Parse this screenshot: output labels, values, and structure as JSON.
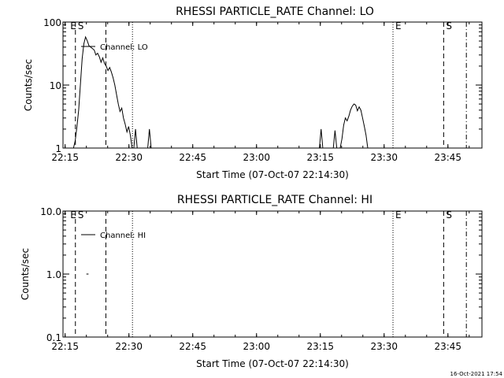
{
  "chart_data": [
    {
      "type": "line",
      "title": "RHESSI PARTICLE_RATE Channel: LO",
      "xlabel": "Start Time (07-Oct-07 22:14:30)",
      "ylabel": "Counts/sec",
      "y_scale": "log",
      "ylim": [
        1,
        100
      ],
      "xlim": [
        "22:14:30",
        "23:53:00"
      ],
      "x_tick_labels": [
        "22:15",
        "22:30",
        "22:45",
        "23:00",
        "23:15",
        "23:30",
        "23:45"
      ],
      "y_tick_labels": [
        "1",
        "10",
        "100"
      ],
      "legend": "top-left",
      "grid": false,
      "series": [
        {
          "name": "Channel: LO",
          "segments": [
            [
              [
                "22:16:58",
                1.0
              ],
              [
                "22:17:22",
                1.3
              ],
              [
                "22:17:47",
                2.2
              ],
              [
                "22:18:11",
                4.0
              ],
              [
                "22:18:35",
                10.0
              ],
              [
                "22:19:00",
                26.0
              ],
              [
                "22:19:24",
                45.0
              ],
              [
                "22:19:48",
                58.0
              ],
              [
                "22:20:13",
                50.0
              ],
              [
                "22:20:37",
                42.0
              ],
              [
                "22:21:01",
                40.0
              ],
              [
                "22:21:25",
                38.0
              ],
              [
                "22:21:50",
                36.0
              ],
              [
                "22:22:14",
                30.0
              ],
              [
                "22:22:38",
                32.0
              ],
              [
                "22:23:03",
                28.0
              ],
              [
                "22:23:27",
                23.0
              ],
              [
                "22:23:51",
                27.0
              ],
              [
                "22:24:16",
                22.0
              ],
              [
                "22:24:40",
                20.0
              ],
              [
                "22:25:04",
                17.0
              ],
              [
                "22:25:29",
                19.0
              ],
              [
                "22:25:53",
                16.0
              ],
              [
                "22:26:17",
                13.0
              ],
              [
                "22:26:41",
                10.0
              ],
              [
                "22:27:06",
                7.0
              ],
              [
                "22:27:30",
                5.0
              ],
              [
                "22:27:54",
                3.8
              ],
              [
                "22:28:19",
                4.3
              ],
              [
                "22:28:43",
                3.0
              ],
              [
                "22:29:07",
                2.4
              ],
              [
                "22:29:32",
                1.8
              ],
              [
                "22:29:56",
                2.2
              ],
              [
                "22:30:20",
                1.6
              ],
              [
                "22:30:45",
                1.0
              ]
            ],
            [
              [
                "22:31:09",
                1.0
              ],
              [
                "22:31:33",
                2.0
              ],
              [
                "22:31:57",
                1.0
              ]
            ],
            [
              [
                "22:34:25",
                1.0
              ],
              [
                "22:34:49",
                2.0
              ],
              [
                "22:35:14",
                1.0
              ]
            ],
            [
              [
                "23:14:47",
                1.0
              ],
              [
                "23:15:11",
                2.0
              ],
              [
                "23:15:35",
                1.0
              ]
            ],
            [
              [
                "23:18:03",
                1.0
              ],
              [
                "23:18:27",
                1.9
              ],
              [
                "23:18:52",
                1.0
              ]
            ],
            [
              [
                "23:19:40",
                1.0
              ],
              [
                "23:20:05",
                1.4
              ],
              [
                "23:20:29",
                2.3
              ],
              [
                "23:20:53",
                3.0
              ],
              [
                "23:21:18",
                2.7
              ],
              [
                "23:21:42",
                3.2
              ],
              [
                "23:22:06",
                4.0
              ],
              [
                "23:22:30",
                4.6
              ],
              [
                "23:22:55",
                5.0
              ],
              [
                "23:23:19",
                4.8
              ],
              [
                "23:23:43",
                3.9
              ],
              [
                "23:24:08",
                4.5
              ],
              [
                "23:24:32",
                4.0
              ],
              [
                "23:24:56",
                3.0
              ],
              [
                "23:25:21",
                2.2
              ],
              [
                "23:25:45",
                1.6
              ],
              [
                "23:26:09",
                1.0
              ]
            ]
          ]
        }
      ],
      "annotations": [
        {
          "label": "E",
          "time": "22:15:40",
          "style": "none"
        },
        {
          "label": "S",
          "time": "22:17:25",
          "style": "dashed"
        },
        {
          "label": "",
          "time": "22:24:35",
          "style": "dashed"
        },
        {
          "label": "",
          "time": "22:30:50",
          "style": "dotted"
        },
        {
          "label": "E",
          "time": "23:32:05",
          "style": "dotted"
        },
        {
          "label": "S",
          "time": "23:44:00",
          "style": "dashed"
        },
        {
          "label": "",
          "time": "23:49:20",
          "style": "dashdot"
        }
      ]
    },
    {
      "type": "line",
      "title": "RHESSI PARTICLE_RATE Channel: HI",
      "xlabel": "Start Time (07-Oct-07 22:14:30)",
      "ylabel": "Counts/sec",
      "y_scale": "log",
      "ylim": [
        0.1,
        10
      ],
      "xlim": [
        "22:14:30",
        "23:53:00"
      ],
      "x_tick_labels": [
        "22:15",
        "22:30",
        "22:45",
        "23:00",
        "23:15",
        "23:30",
        "23:45"
      ],
      "y_tick_labels": [
        "0.1",
        "1.0",
        "10.0"
      ],
      "legend": "top-left",
      "grid": false,
      "series": [
        {
          "name": "Channel: HI",
          "segments": [
            [
              [
                "22:20:00",
                1.0
              ],
              [
                "22:20:30",
                1.0
              ]
            ]
          ]
        }
      ],
      "annotations": [
        {
          "label": "E",
          "time": "22:15:40",
          "style": "none"
        },
        {
          "label": "S",
          "time": "22:17:25",
          "style": "dashed"
        },
        {
          "label": "",
          "time": "22:24:35",
          "style": "dashed"
        },
        {
          "label": "",
          "time": "22:30:50",
          "style": "dotted"
        },
        {
          "label": "E",
          "time": "23:32:05",
          "style": "dotted"
        },
        {
          "label": "S",
          "time": "23:44:00",
          "style": "dashed"
        },
        {
          "label": "",
          "time": "23:49:20",
          "style": "dashdot"
        }
      ]
    }
  ],
  "footer": {
    "timestamp": "16-Oct-2021 17:54"
  }
}
